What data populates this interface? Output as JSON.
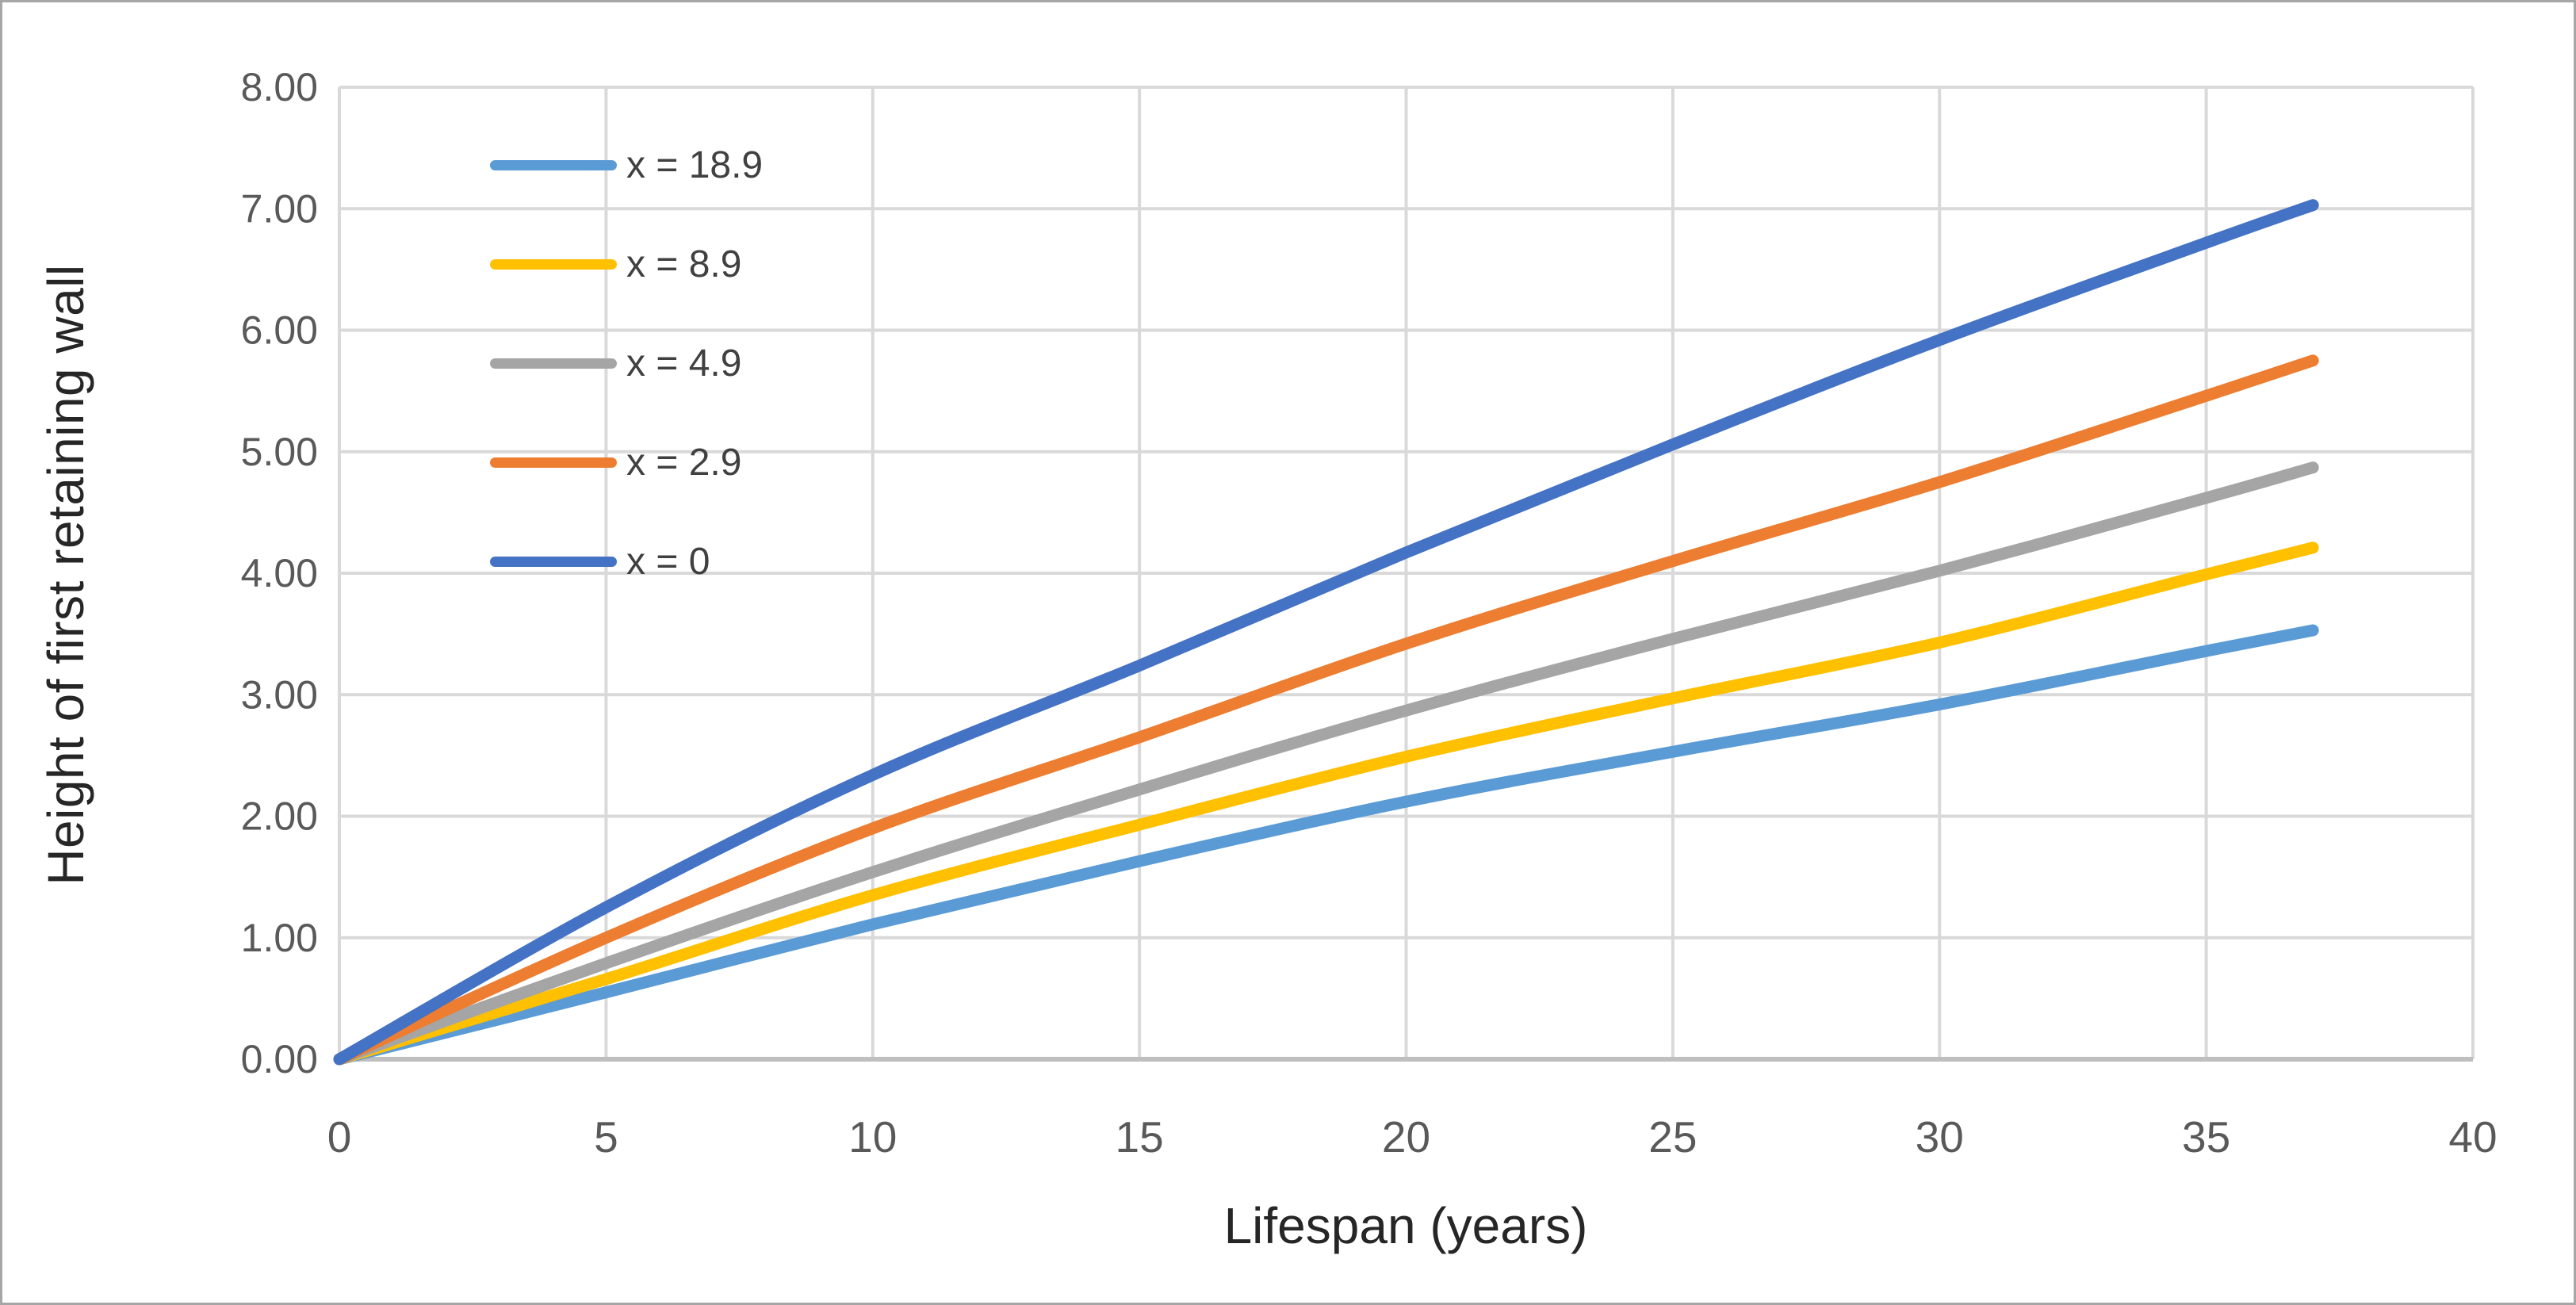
{
  "figure": {
    "background_color": "#ffffff",
    "outer_border_color": "#a6a6a6"
  },
  "chart_data": {
    "type": "line",
    "title": "",
    "xlabel": "Lifespan (years)",
    "ylabel": "Height of first retaining wall",
    "x": [
      0,
      5,
      10,
      15,
      20,
      25,
      30,
      35,
      37
    ],
    "series": [
      {
        "name": "x = 18.9",
        "color": "#5B9BD5",
        "values": [
          0,
          0.55,
          1.11,
          1.63,
          2.12,
          2.53,
          2.92,
          3.36,
          3.53
        ]
      },
      {
        "name": "x = 8.9",
        "color": "#FFC000",
        "values": [
          0,
          0.66,
          1.35,
          1.93,
          2.49,
          2.97,
          3.43,
          3.99,
          4.21
        ]
      },
      {
        "name": "x = 4.9",
        "color": "#A5A5A5",
        "values": [
          0,
          0.79,
          1.54,
          2.22,
          2.87,
          3.46,
          4.02,
          4.62,
          4.87
        ]
      },
      {
        "name": "x = 2.9",
        "color": "#ED7D31",
        "values": [
          0,
          1.0,
          1.9,
          2.65,
          3.42,
          4.1,
          4.75,
          5.46,
          5.75
        ]
      },
      {
        "name": "x = 0",
        "color": "#4472C4",
        "values": [
          0,
          1.25,
          2.34,
          3.24,
          4.17,
          5.06,
          5.92,
          6.72,
          7.03
        ]
      }
    ],
    "xlim": [
      0,
      40
    ],
    "ylim": [
      0,
      8
    ],
    "x_ticks": [
      "0",
      "5",
      "10",
      "15",
      "20",
      "25",
      "30",
      "35",
      "40"
    ],
    "y_ticks": [
      "0.00",
      "1.00",
      "2.00",
      "3.00",
      "4.00",
      "5.00",
      "6.00",
      "7.00",
      "8.00"
    ],
    "grid": true,
    "legend_position": "inside-upper-left",
    "styles": {
      "gridline_color": "#D9D9D9",
      "axis_line_color": "#BFBFBF",
      "tick_label_color": "#595959",
      "axis_title_color": "#262626",
      "legend_text_color": "#404040",
      "line_width": 15
    }
  }
}
